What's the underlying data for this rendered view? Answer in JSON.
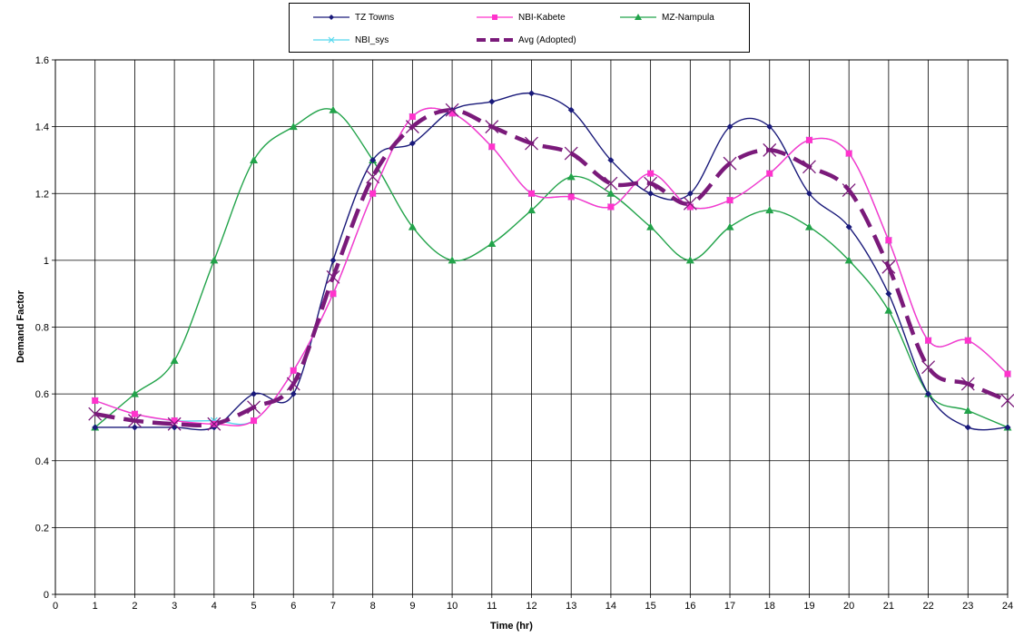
{
  "chart_data": {
    "type": "line",
    "xlabel": "Time (hr)",
    "ylabel": "Demand Factor",
    "xlim": [
      0,
      24
    ],
    "ylim": [
      0,
      1.6
    ],
    "x_ticks": [
      "0",
      "1",
      "2",
      "3",
      "4",
      "5",
      "6",
      "7",
      "8",
      "9",
      "10",
      "11",
      "12",
      "13",
      "14",
      "15",
      "16",
      "17",
      "18",
      "19",
      "20",
      "21",
      "22",
      "23",
      "24"
    ],
    "y_ticks": [
      "0",
      "0.2",
      "0.4",
      "0.6",
      "0.8",
      "1",
      "1.2",
      "1.4",
      "1.6"
    ],
    "grid": true,
    "legend_position": "top",
    "x": [
      1,
      2,
      3,
      4,
      5,
      6,
      7,
      8,
      9,
      10,
      11,
      12,
      13,
      14,
      15,
      16,
      17,
      18,
      19,
      20,
      21,
      22,
      23,
      24
    ],
    "series": [
      {
        "name": "TZ Towns",
        "color": "#1a1a7a",
        "marker": "diamond",
        "style": "solid",
        "values": [
          0.5,
          0.5,
          0.5,
          0.5,
          0.6,
          0.6,
          1.0,
          1.3,
          1.35,
          1.45,
          1.475,
          1.5,
          1.45,
          1.3,
          1.2,
          1.2,
          1.4,
          1.4,
          1.2,
          1.1,
          0.9,
          0.6,
          0.5,
          0.5
        ]
      },
      {
        "name": "NBI-Kabete",
        "color": "#ff33cc",
        "marker": "square",
        "style": "solid",
        "values": [
          0.58,
          0.54,
          0.52,
          0.51,
          0.52,
          0.67,
          0.9,
          1.2,
          1.43,
          1.44,
          1.34,
          1.2,
          1.19,
          1.16,
          1.26,
          1.16,
          1.18,
          1.26,
          1.36,
          1.32,
          1.06,
          0.76,
          0.76,
          0.66
        ]
      },
      {
        "name": "MZ-Nampula",
        "color": "#22a34a",
        "marker": "triangle",
        "style": "solid",
        "values": [
          0.5,
          0.6,
          0.7,
          1.0,
          1.3,
          1.4,
          1.45,
          1.3,
          1.1,
          1.0,
          1.05,
          1.15,
          1.25,
          1.2,
          1.1,
          1.0,
          1.1,
          1.15,
          1.1,
          1.0,
          0.85,
          0.6,
          0.55,
          0.5
        ]
      },
      {
        "name": "NBI_sys",
        "color": "#55d8ee",
        "marker": "x",
        "style": "solid",
        "values": [
          0.58,
          0.54,
          0.52,
          0.52,
          0.52,
          0.67,
          0.9,
          1.2,
          1.43,
          1.44,
          1.34,
          1.2,
          1.19,
          1.16,
          1.26,
          1.16,
          1.18,
          1.26,
          1.36,
          1.32,
          1.06,
          0.76,
          0.76,
          0.66
        ]
      },
      {
        "name": "Avg (Adopted)",
        "color": "#7a1a7a",
        "marker": "x-large",
        "style": "dashed",
        "values": [
          0.54,
          0.52,
          0.51,
          0.51,
          0.56,
          0.63,
          0.95,
          1.25,
          1.4,
          1.45,
          1.4,
          1.35,
          1.32,
          1.23,
          1.23,
          1.17,
          1.29,
          1.33,
          1.28,
          1.21,
          0.98,
          0.68,
          0.63,
          0.58
        ]
      }
    ]
  }
}
